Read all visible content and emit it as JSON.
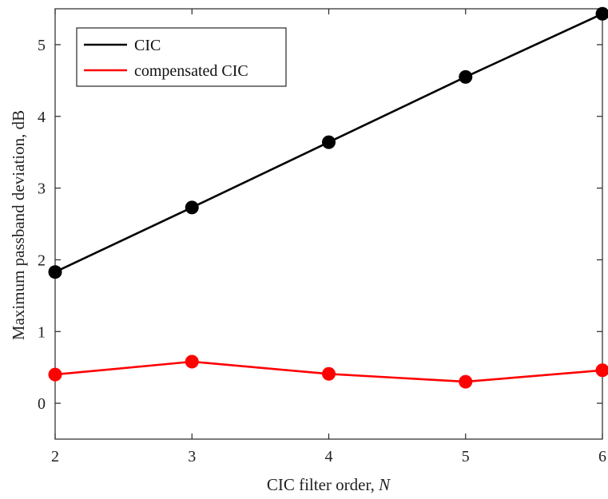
{
  "chart_data": {
    "type": "line",
    "xlabel": "CIC filter order, ",
    "xlabel_var": "N",
    "ylabel": "Maximum passband deviation, dB",
    "xlim": [
      2,
      6
    ],
    "ylim": [
      -0.5,
      5.5
    ],
    "x_ticks": [
      2,
      3,
      4,
      5,
      6
    ],
    "y_ticks": [
      0,
      1,
      2,
      3,
      4,
      5
    ],
    "grid": false,
    "legend_position": "top-left",
    "x": [
      2,
      3,
      4,
      5,
      6
    ],
    "series": [
      {
        "name": "CIC",
        "color": "#000000",
        "values": [
          1.83,
          2.73,
          3.64,
          4.55,
          5.43
        ]
      },
      {
        "name": "compensated CIC",
        "color": "#ff0000",
        "values": [
          0.4,
          0.58,
          0.41,
          0.3,
          0.46
        ]
      }
    ]
  }
}
